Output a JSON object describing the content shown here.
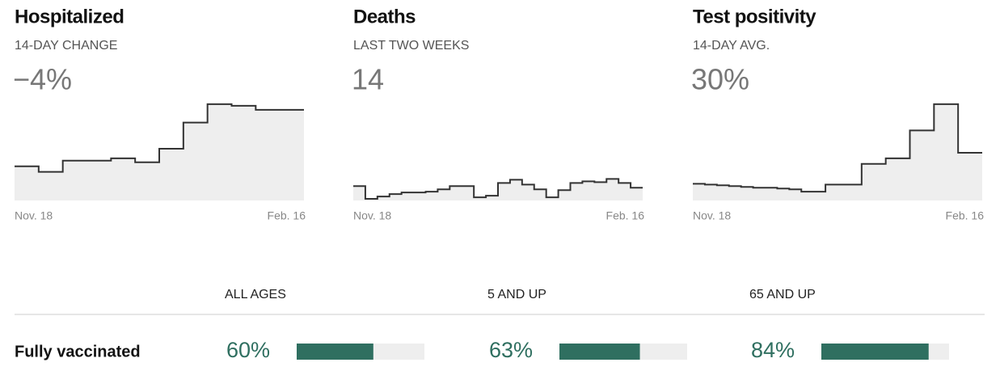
{
  "chart_data": [
    {
      "type": "step-area",
      "title": "Hospitalized",
      "subtitle": "14-DAY CHANGE",
      "stat": "−4%",
      "categories": [
        "Nov. 18",
        null,
        null,
        null,
        null,
        null,
        null,
        null,
        null,
        null,
        null,
        null,
        null,
        null,
        null,
        null,
        null,
        null,
        null,
        null,
        null,
        null,
        null,
        "Feb. 16"
      ],
      "values": [
        43,
        43,
        36,
        36,
        50,
        50,
        50,
        50,
        53,
        53,
        48,
        48,
        65,
        65,
        98,
        98,
        121,
        121,
        119,
        119,
        114,
        114,
        114,
        114
      ],
      "ylim": [
        0,
        125
      ],
      "color": "#333333",
      "fill": "#eeeeee"
    },
    {
      "type": "step-area",
      "title": "Deaths",
      "subtitle": "LAST TWO WEEKS",
      "stat": "14",
      "categories": [
        "Nov. 18",
        null,
        null,
        null,
        null,
        null,
        null,
        null,
        null,
        null,
        null,
        null,
        null,
        null,
        null,
        null,
        null,
        null,
        null,
        null,
        null,
        null,
        null,
        "Feb. 16"
      ],
      "values": [
        18,
        2,
        5,
        8,
        10,
        10,
        11,
        14,
        18,
        18,
        4,
        6,
        22,
        26,
        20,
        14,
        4,
        13,
        22,
        24,
        23,
        27,
        22,
        16
      ],
      "ylim": [
        0,
        125
      ],
      "color": "#333333",
      "fill": "#eeeeee"
    },
    {
      "type": "step-area",
      "title": "Test positivity",
      "subtitle": "14-DAY AVG.",
      "stat": "30%",
      "categories": [
        "Nov. 18",
        null,
        null,
        null,
        null,
        null,
        null,
        null,
        null,
        null,
        null,
        null,
        null,
        null,
        null,
        null,
        null,
        null,
        null,
        null,
        null,
        null,
        null,
        "Feb. 16"
      ],
      "values": [
        21,
        20,
        19,
        18,
        17,
        16,
        16,
        15,
        14,
        11,
        11,
        20,
        20,
        20,
        46,
        46,
        53,
        53,
        88,
        88,
        121,
        121,
        60,
        60
      ],
      "ylim": [
        0,
        125
      ],
      "color": "#333333",
      "fill": "#eeeeee"
    }
  ],
  "vaccination": {
    "label": "Fully vaccinated",
    "xlim": [
      0,
      100
    ],
    "color": "#2f6f60",
    "track": "#eeeeee",
    "groups": [
      {
        "name": "ALL AGES",
        "value": 60,
        "value_label": "60%"
      },
      {
        "name": "5 AND UP",
        "value": 63,
        "value_label": "63%"
      },
      {
        "name": "65 AND UP",
        "value": 84,
        "value_label": "84%"
      }
    ]
  }
}
